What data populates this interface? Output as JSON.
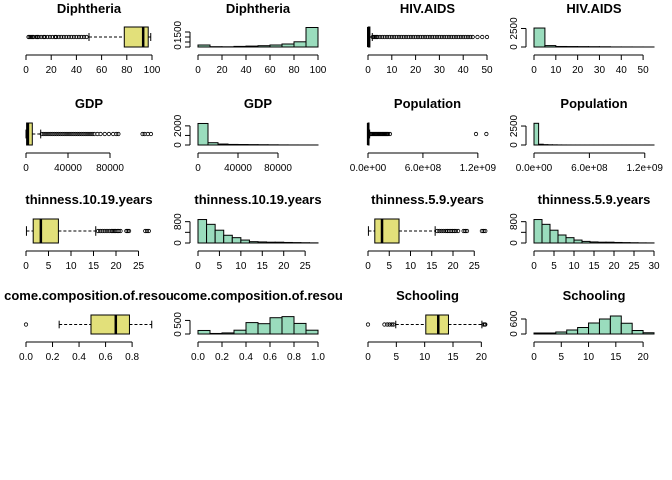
{
  "chart_data": [
    {
      "type": "box",
      "title": "Diphtheria",
      "xlim": [
        0,
        100
      ],
      "ticks": [
        0,
        20,
        40,
        60,
        80,
        100
      ],
      "tick_labels": [
        "0",
        "20",
        "40",
        "60",
        "80",
        "100"
      ],
      "whisker_low": 50,
      "q1": 78,
      "median": 93,
      "q3": 97,
      "whisker_high": 99,
      "outliers": [
        2,
        3,
        4,
        5,
        6,
        8,
        9,
        10,
        12,
        14,
        15,
        17,
        19,
        21,
        23,
        24,
        26,
        28,
        30,
        32,
        34,
        36,
        38,
        40,
        42,
        44,
        46,
        48
      ]
    },
    {
      "type": "bar",
      "title": "Diphtheria",
      "bins": [
        0,
        10,
        20,
        30,
        40,
        50,
        60,
        70,
        80,
        90,
        100
      ],
      "counts": [
        200,
        30,
        20,
        60,
        90,
        130,
        200,
        300,
        520,
        1950
      ],
      "xlim": [
        0,
        100
      ],
      "xticks": [
        0,
        20,
        40,
        60,
        80,
        100
      ],
      "xtick_labels": [
        "0",
        "20",
        "40",
        "60",
        "80",
        "100"
      ],
      "ylim": [
        0,
        2000
      ],
      "yticks": [
        0,
        500,
        1000,
        1500
      ],
      "ytick_labels": [
        "0",
        "",
        "",
        "1500"
      ]
    },
    {
      "type": "box",
      "title": "HIV.AIDS",
      "xlim": [
        0,
        50
      ],
      "ticks": [
        0,
        10,
        20,
        30,
        40,
        50
      ],
      "tick_labels": [
        "0",
        "10",
        "20",
        "30",
        "40",
        "50"
      ],
      "whisker_low": 0.1,
      "q1": 0.1,
      "median": 0.1,
      "q3": 0.8,
      "whisker_high": 1.8,
      "outliers": [
        2,
        2.5,
        3,
        3.5,
        4,
        5,
        6,
        7,
        8,
        9,
        10,
        11,
        12,
        13,
        14,
        15,
        16,
        17,
        18,
        19,
        20,
        21,
        22,
        23,
        24,
        25,
        26,
        27,
        28,
        29,
        30,
        31,
        32,
        33,
        34,
        35,
        36,
        37,
        38,
        39,
        40,
        41,
        42,
        43,
        44,
        46,
        48,
        50
      ]
    },
    {
      "type": "bar",
      "title": "HIV.AIDS",
      "bins": [
        0,
        5,
        10,
        15,
        20,
        25,
        30,
        35,
        40,
        45,
        50,
        55
      ],
      "counts": [
        2560,
        190,
        70,
        60,
        50,
        40,
        30,
        10,
        8,
        5,
        3
      ],
      "xlim": [
        0,
        55
      ],
      "xticks": [
        0,
        10,
        20,
        30,
        40,
        50
      ],
      "xtick_labels": [
        "0",
        "10",
        "20",
        "30",
        "40",
        "50"
      ],
      "ylim": [
        0,
        2700
      ],
      "yticks": [
        0,
        2500
      ],
      "ytick_labels": [
        "0",
        "2500"
      ]
    },
    {
      "type": "box",
      "title": "GDP",
      "xlim": [
        0,
        120000
      ],
      "ticks": [
        0,
        40000,
        80000
      ],
      "tick_labels": [
        "0",
        "40000",
        "80000"
      ],
      "whisker_low": 2,
      "q1": 580,
      "median": 1800,
      "q3": 6000,
      "whisker_high": 14000,
      "outliers": [
        15000,
        17000,
        19000,
        21000,
        23000,
        25000,
        27000,
        29000,
        31000,
        33000,
        35000,
        37000,
        39000,
        41000,
        43000,
        45000,
        47000,
        49000,
        51000,
        53000,
        55000,
        57000,
        59000,
        61000,
        63000,
        65000,
        68000,
        71000,
        75000,
        79000,
        83000,
        86000,
        88000,
        111000,
        113000,
        116000,
        119000
      ]
    },
    {
      "type": "bar",
      "title": "GDP",
      "bins": [
        0,
        10000,
        20000,
        30000,
        40000,
        50000,
        60000,
        70000,
        80000,
        90000,
        100000,
        110000,
        120000
      ],
      "counts": [
        2250,
        240,
        100,
        60,
        50,
        40,
        30,
        20,
        10,
        5,
        3,
        2
      ],
      "xlim": [
        0,
        120000
      ],
      "xticks": [
        0,
        40000,
        80000
      ],
      "xtick_labels": [
        "0",
        "40000",
        "80000"
      ],
      "ylim": [
        0,
        2300
      ],
      "yticks": [
        0,
        1000,
        2000
      ],
      "ytick_labels": [
        "0",
        "",
        "2000"
      ]
    },
    {
      "type": "box",
      "title": "Population",
      "xlim": [
        0,
        1300000000
      ],
      "ticks": [
        0,
        600000000,
        1200000000
      ],
      "tick_labels": [
        "0.0e+00",
        "6.0e+08",
        "1.2e+09"
      ],
      "whisker_low": 34,
      "q1": 190000,
      "median": 1400000,
      "q3": 7400000,
      "whisker_high": 18000000,
      "outliers": [
        25000000,
        30000000,
        40000000,
        50000000,
        60000000,
        70000000,
        80000000,
        90000000,
        100000000,
        110000000,
        120000000,
        130000000,
        140000000,
        150000000,
        160000000,
        170000000,
        180000000,
        190000000,
        200000000,
        210000000,
        220000000,
        240000000,
        1180000000,
        1293000000
      ]
    },
    {
      "type": "bar",
      "title": "Population",
      "bins": [
        0,
        50000000,
        100000000,
        150000000,
        200000000,
        250000000,
        300000000,
        350000000,
        400000000,
        450000000,
        500000000,
        550000000,
        600000000,
        650000000,
        700000000,
        750000000,
        800000000,
        850000000,
        900000000,
        950000000,
        1000000000,
        1050000000,
        1100000000,
        1150000000,
        1200000000,
        1250000000,
        1300000000
      ],
      "counts": [
        2860,
        100,
        50,
        30,
        20,
        10,
        5,
        3,
        2,
        2,
        1,
        1,
        1,
        1,
        1,
        1,
        1,
        1,
        1,
        1,
        1,
        1,
        1,
        1,
        2,
        1
      ],
      "xlim": [
        0,
        1300000000
      ],
      "xticks": [
        0,
        600000000,
        1200000000
      ],
      "xtick_labels": [
        "0.0e+00",
        "6.0e+08",
        "1.2e+09"
      ],
      "ylim": [
        0,
        2900
      ],
      "yticks": [
        0,
        2500
      ],
      "ytick_labels": [
        "0",
        "2500"
      ]
    },
    {
      "type": "box",
      "title": "thinness.10.19.years",
      "xlim": [
        0,
        28
      ],
      "ticks": [
        0,
        5,
        10,
        15,
        20,
        25
      ],
      "tick_labels": [
        "0",
        "5",
        "10",
        "15",
        "20",
        "25"
      ],
      "whisker_low": 0.1,
      "q1": 1.6,
      "median": 3.3,
      "q3": 7.2,
      "whisker_high": 15.5,
      "outliers": [
        16,
        16.5,
        17,
        17.5,
        18,
        18.5,
        19,
        19.3,
        19.6,
        19.9,
        20.3,
        20.6,
        21,
        22.3,
        22.6,
        22.9,
        26.5,
        26.9,
        27.3
      ]
    },
    {
      "type": "bar",
      "title": "thinness.10.19.years",
      "bins": [
        0,
        2,
        4,
        6,
        8,
        10,
        12,
        14,
        16,
        18,
        20,
        22,
        24,
        26,
        28
      ],
      "counts": [
        880,
        700,
        480,
        290,
        200,
        110,
        50,
        40,
        30,
        30,
        20,
        15,
        10,
        5
      ],
      "xlim": [
        0,
        28
      ],
      "xticks": [
        0,
        5,
        10,
        15,
        20,
        25
      ],
      "xtick_labels": [
        "0",
        "5",
        "10",
        "15",
        "20",
        "25"
      ],
      "ylim": [
        0,
        900
      ],
      "yticks": [
        0,
        400,
        800
      ],
      "ytick_labels": [
        "0",
        "",
        "800"
      ]
    },
    {
      "type": "box",
      "title": "thinness.5.9.years",
      "xlim": [
        0,
        28
      ],
      "ticks": [
        0,
        5,
        10,
        15,
        20,
        25
      ],
      "tick_labels": [
        "0",
        "5",
        "10",
        "15",
        "20",
        "25"
      ],
      "whisker_low": 0.1,
      "q1": 1.6,
      "median": 3.3,
      "q3": 7.3,
      "whisker_high": 15.8,
      "outliers": [
        16.3,
        16.8,
        17.3,
        17.8,
        18.3,
        18.7,
        19.1,
        19.5,
        19.9,
        20.3,
        20.7,
        21.2,
        22.5,
        22.9,
        23.3,
        26.8,
        27.2,
        27.6
      ]
    },
    {
      "type": "bar",
      "title": "thinness.5.9.years",
      "bins": [
        0,
        2,
        4,
        6,
        8,
        10,
        12,
        14,
        16,
        18,
        20,
        22,
        24,
        26,
        28,
        30
      ],
      "counts": [
        880,
        700,
        480,
        300,
        200,
        110,
        60,
        40,
        30,
        30,
        20,
        15,
        10,
        5,
        3
      ],
      "xlim": [
        0,
        30
      ],
      "xticks": [
        0,
        5,
        10,
        15,
        20,
        25,
        30
      ],
      "xtick_labels": [
        "0",
        "5",
        "10",
        "15",
        "20",
        "25",
        "30"
      ],
      "ylim": [
        0,
        900
      ],
      "yticks": [
        0,
        400,
        800
      ],
      "ytick_labels": [
        "0",
        "",
        "800"
      ]
    },
    {
      "type": "box",
      "title": "come.composition.of.resou",
      "xlim": [
        0,
        0.95
      ],
      "ticks": [
        0,
        0.2,
        0.4,
        0.6,
        0.8
      ],
      "tick_labels": [
        "0.0",
        "0.2",
        "0.4",
        "0.6",
        "0.8"
      ],
      "whisker_low": 0.25,
      "q1": 0.49,
      "median": 0.677,
      "q3": 0.78,
      "whisker_high": 0.948,
      "outliers": [
        0
      ]
    },
    {
      "type": "bar",
      "title": "come.composition.of.resou",
      "bins": [
        0,
        0.1,
        0.2,
        0.3,
        0.4,
        0.5,
        0.6,
        0.7,
        0.8,
        0.9,
        1.0
      ],
      "counts": [
        130,
        20,
        40,
        140,
        420,
        380,
        600,
        640,
        390,
        140
      ],
      "xlim": [
        0,
        1.0
      ],
      "xticks": [
        0,
        0.2,
        0.4,
        0.6,
        0.8,
        1.0
      ],
      "xtick_labels": [
        "0.0",
        "0.2",
        "0.4",
        "0.6",
        "0.8",
        "1.0"
      ],
      "ylim": [
        0,
        700
      ],
      "yticks": [
        0,
        500
      ],
      "ytick_labels": [
        "0",
        "500"
      ]
    },
    {
      "type": "box",
      "title": "Schooling",
      "xlim": [
        0,
        21
      ],
      "ticks": [
        0,
        5,
        10,
        15,
        20
      ],
      "tick_labels": [
        "0",
        "5",
        "10",
        "15",
        "20"
      ],
      "whisker_low": 4.9,
      "q1": 10.2,
      "median": 12.4,
      "q3": 14.2,
      "whisker_high": 20.1,
      "outliers": [
        0,
        2.9,
        3.4,
        3.8,
        4.2,
        4.5,
        20.4,
        20.6,
        20.7
      ]
    },
    {
      "type": "bar",
      "title": "Schooling",
      "bins": [
        0,
        2,
        4,
        6,
        8,
        10,
        12,
        14,
        16,
        18,
        20,
        22
      ],
      "counts": [
        40,
        40,
        80,
        160,
        260,
        440,
        600,
        720,
        430,
        140,
        50
      ],
      "xlim": [
        0,
        22
      ],
      "xticks": [
        0,
        5,
        10,
        15,
        20
      ],
      "xtick_labels": [
        "0",
        "5",
        "10",
        "15",
        "20"
      ],
      "ylim": [
        0,
        760
      ],
      "yticks": [
        0,
        600
      ],
      "ytick_labels": [
        "0",
        "600"
      ]
    }
  ],
  "colors": {
    "box_fill": "#e2e07a",
    "hist_fill": "#9adcbd",
    "stroke": "#000000",
    "background": "#ffffff"
  }
}
